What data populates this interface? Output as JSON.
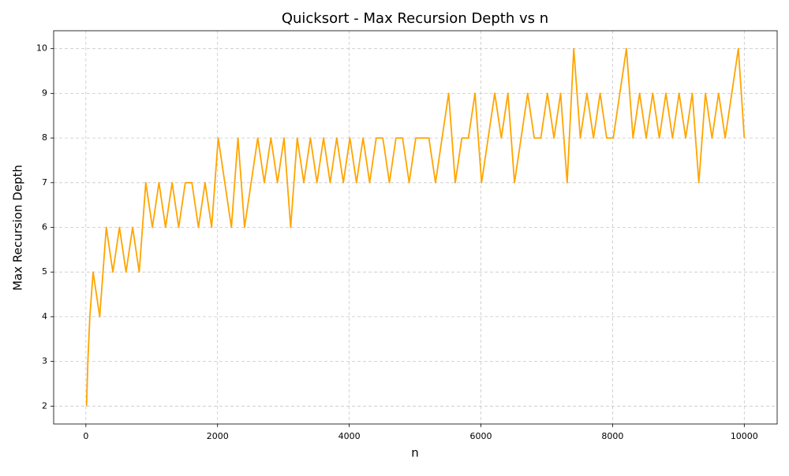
{
  "chart_data": {
    "type": "line",
    "title": "Quicksort - Max Recursion Depth vs n",
    "xlabel": "n",
    "ylabel": "Max Recursion Depth",
    "color": "#ffa500",
    "grid": true,
    "x": [
      10,
      30,
      60,
      110,
      210,
      310,
      410,
      510,
      610,
      710,
      810,
      910,
      1010,
      1110,
      1210,
      1310,
      1410,
      1510,
      1610,
      1710,
      1810,
      1910,
      2010,
      2110,
      2210,
      2310,
      2410,
      2510,
      2610,
      2710,
      2810,
      2910,
      3010,
      3110,
      3210,
      3310,
      3410,
      3510,
      3610,
      3710,
      3810,
      3910,
      4010,
      4110,
      4210,
      4310,
      4410,
      4510,
      4610,
      4710,
      4810,
      4910,
      5010,
      5110,
      5210,
      5310,
      5410,
      5510,
      5610,
      5710,
      5810,
      5910,
      6010,
      6110,
      6210,
      6310,
      6410,
      6510,
      6610,
      6710,
      6810,
      6910,
      7010,
      7110,
      7210,
      7310,
      7410,
      7510,
      7610,
      7710,
      7810,
      7910,
      8010,
      8110,
      8210,
      8310,
      8410,
      8510,
      8610,
      8710,
      8810,
      8910,
      9010,
      9110,
      9210,
      9310,
      9410,
      9510,
      9610,
      9710,
      9810,
      9910,
      10000
    ],
    "values": [
      2,
      3,
      4,
      5,
      4,
      6,
      5,
      6,
      5,
      6,
      5,
      7,
      6,
      7,
      6,
      7,
      6,
      7,
      7,
      6,
      7,
      6,
      8,
      7,
      6,
      8,
      6,
      7,
      8,
      7,
      8,
      7,
      8,
      6,
      8,
      7,
      8,
      7,
      8,
      7,
      8,
      7,
      8,
      7,
      8,
      7,
      8,
      8,
      7,
      8,
      8,
      7,
      8,
      8,
      8,
      7,
      8,
      9,
      7,
      8,
      8,
      9,
      7,
      8,
      9,
      8,
      9,
      7,
      8,
      9,
      8,
      8,
      9,
      8,
      9,
      7,
      10,
      8,
      9,
      8,
      9,
      8,
      8,
      9,
      10,
      8,
      9,
      8,
      9,
      8,
      9,
      8,
      9,
      8,
      9,
      7,
      9,
      8,
      9,
      8,
      9,
      10,
      8
    ],
    "xlim": [
      -489.5,
      10499.5
    ],
    "xticks": [
      0,
      2000,
      4000,
      6000,
      8000,
      10000
    ],
    "ylim": [
      1.6,
      10.4
    ],
    "yticks": [
      2,
      3,
      4,
      5,
      6,
      7,
      8,
      9,
      10
    ]
  }
}
